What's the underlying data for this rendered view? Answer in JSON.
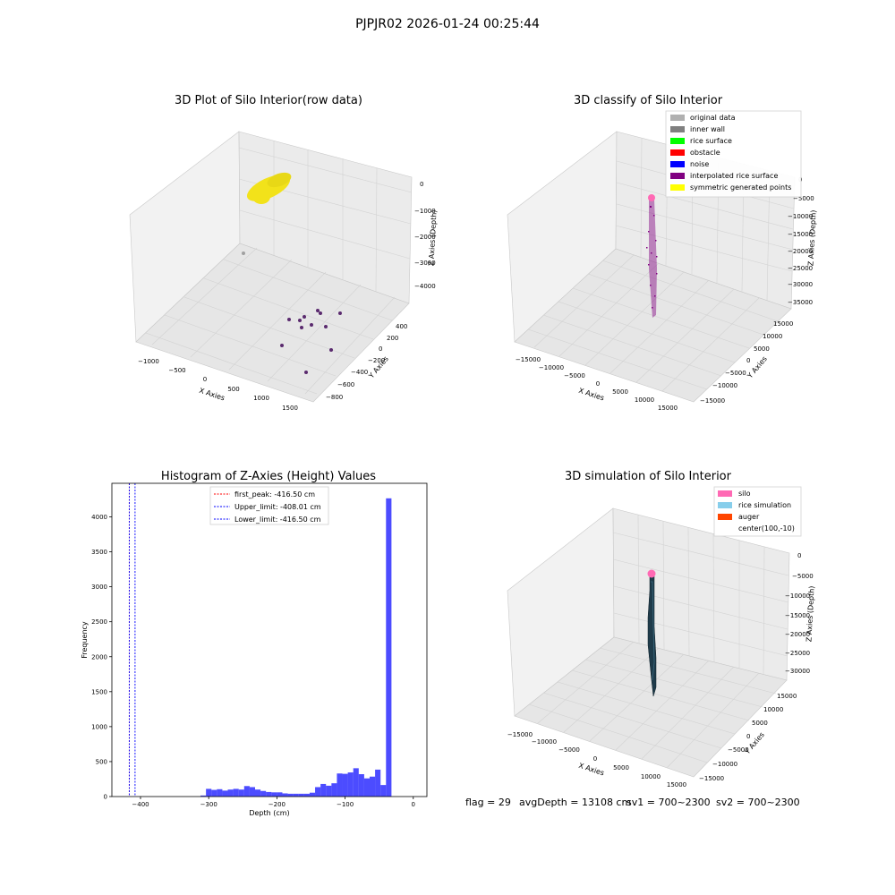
{
  "suptitle": "PJPJR02 2026-01-24 00:25:44",
  "panel1": {
    "title": "3D Plot of Silo Interior(row data)",
    "xlabel": "X Axies",
    "ylabel": "Y Axies",
    "zlabel": "Z Axies (Depth)",
    "xticks": [
      "−1000",
      "−500",
      "0",
      "500",
      "1000",
      "1500"
    ],
    "yticks": [
      "400",
      "200",
      "0",
      "−200",
      "−400",
      "−600",
      "−800"
    ],
    "zticks": [
      "0",
      "−1000",
      "−2000",
      "−3000",
      "−4000"
    ],
    "colors": {
      "surface": "#f2e21a",
      "points": "#5a2a6e",
      "gray_point": "#a0a0a0"
    }
  },
  "panel2": {
    "title": "3D classify of Silo Interior",
    "xlabel": "X Axies",
    "ylabel": "Y Axies",
    "zlabel": "Z Axies (Depth)",
    "xticks": [
      "−15000",
      "−10000",
      "−5000",
      "0",
      "5000",
      "10000",
      "15000"
    ],
    "yticks": [
      "15000",
      "10000",
      "5000",
      "0",
      "−5000",
      "−10000",
      "−15000"
    ],
    "zticks": [
      "0",
      "−5000",
      "−10000",
      "−15000",
      "−20000",
      "−25000",
      "−30000",
      "−35000"
    ],
    "legend": [
      {
        "label": "original data",
        "color": "#b0b0b0"
      },
      {
        "label": "inner wall",
        "color": "#808080"
      },
      {
        "label": "rice surface",
        "color": "#00ff00"
      },
      {
        "label": "obstacle",
        "color": "#ff0000"
      },
      {
        "label": "noise",
        "color": "#0000ff"
      },
      {
        "label": "interpolated rice surface",
        "color": "#800080"
      },
      {
        "label": "symmetric generated points",
        "color": "#ffff00"
      }
    ]
  },
  "chart_data": [
    {
      "type": "scatter",
      "panel": "panel1",
      "title": "3D Plot of Silo Interior(row data)",
      "xlabel": "X Axies",
      "ylabel": "Y Axies",
      "zlabel": "Z Axies (Depth)"
    },
    {
      "type": "scatter",
      "panel": "panel2",
      "title": "3D classify of Silo Interior",
      "xlabel": "X Axies",
      "ylabel": "Y Axies",
      "zlabel": "Z Axies (Depth)"
    },
    {
      "type": "bar",
      "panel": "panel3",
      "title": "Histogram of Z-Axies (Height) Values",
      "xlabel": "Depth (cm)",
      "ylabel": "Frequency",
      "xlim": [
        -442,
        20
      ],
      "ylim": [
        0,
        4480
      ],
      "bin_start": -312,
      "bin_width": 8,
      "counts": [
        15,
        110,
        95,
        105,
        85,
        100,
        110,
        100,
        150,
        135,
        100,
        80,
        65,
        60,
        60,
        45,
        40,
        40,
        40,
        40,
        55,
        135,
        180,
        155,
        190,
        330,
        325,
        345,
        405,
        320,
        260,
        285,
        385,
        165,
        4265
      ],
      "color": "#0000ff",
      "vlines": [
        {
          "label": "first_peak: -416.50 cm",
          "x": -416.5,
          "color": "#ff0000"
        },
        {
          "label": "Upper_limit: -408.01 cm",
          "x": -408.01,
          "color": "#0000ff"
        },
        {
          "label": "Lower_limit: -416.50 cm",
          "x": -416.5,
          "color": "#0000ff"
        }
      ],
      "xticks": [
        "−400",
        "−300",
        "−200",
        "−100",
        "0"
      ],
      "yticks": [
        "0",
        "500",
        "1000",
        "1500",
        "2000",
        "2500",
        "3000",
        "3500",
        "4000"
      ]
    },
    {
      "type": "surface",
      "panel": "panel4",
      "title": "3D simulation of Silo Interior",
      "xlabel": "X Axies",
      "ylabel": "Y Axies",
      "zlabel": "Z Axies (Depth)"
    }
  ],
  "panel4": {
    "title": "3D simulation of Silo Interior",
    "xlabel": "X Axies",
    "ylabel": "Y Axies",
    "zlabel": "Z Axies (Depth)",
    "xticks": [
      "−15000",
      "−10000",
      "−5000",
      "0",
      "5000",
      "10000",
      "15000"
    ],
    "yticks": [
      "15000",
      "10000",
      "5000",
      "0",
      "−5000",
      "−10000",
      "−15000"
    ],
    "zticks": [
      "0",
      "−5000",
      "−10000",
      "−15000",
      "−20000",
      "−25000",
      "−30000"
    ],
    "legend": [
      {
        "label": "silo",
        "color": "#ff69b4"
      },
      {
        "label": "rice simulation",
        "color": "#87ceeb"
      },
      {
        "label": "auger",
        "color": "#ff4500"
      },
      {
        "label": "center(100,-10)",
        "color": "none"
      }
    ]
  },
  "footer": {
    "flag": "flag = 29",
    "avg": "avgDepth = 13108 cm",
    "sv1": "sv1 = 700~2300",
    "sv2": "sv2 = 700~2300"
  }
}
